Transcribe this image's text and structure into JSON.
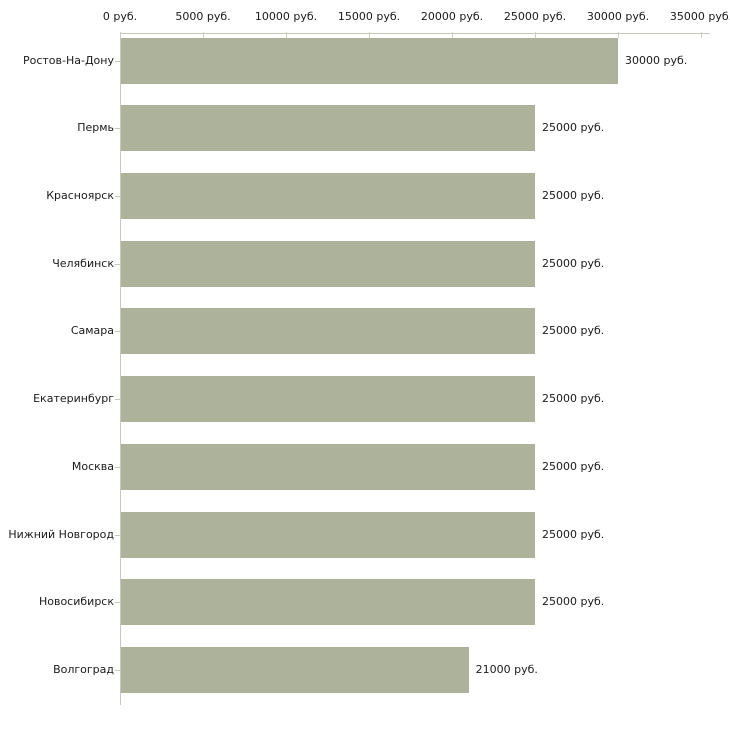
{
  "chart_data": {
    "type": "bar",
    "orientation": "horizontal",
    "title": "",
    "xlabel": "",
    "ylabel": "",
    "categories": [
      "Ростов-На-Дону",
      "Пермь",
      "Красноярск",
      "Челябинск",
      "Самара",
      "Екатеринбург",
      "Москва",
      "Нижний Новгород",
      "Новосибирск",
      "Волгоград"
    ],
    "values": [
      30000,
      25000,
      25000,
      25000,
      25000,
      25000,
      25000,
      25000,
      25000,
      21000
    ],
    "value_labels": [
      "30000 руб.",
      "25000 руб.",
      "25000 руб.",
      "25000 руб.",
      "25000 руб.",
      "25000 руб.",
      "25000 руб.",
      "25000 руб.",
      "25000 руб.",
      "21000 руб."
    ],
    "x_tick_values": [
      0,
      5000,
      10000,
      15000,
      20000,
      25000,
      30000,
      35000
    ],
    "x_tick_labels": [
      "0 руб.",
      "5000 руб.",
      "10000 руб.",
      "15000 руб.",
      "20000 руб.",
      "25000 руб.",
      "30000 руб.",
      "35000 руб."
    ],
    "xlim": [
      0,
      35000
    ],
    "grid": false,
    "legend": "none",
    "colors": {
      "bar": "#adb39a",
      "axis": "#c6c9ba",
      "tick": "#cdd1bb",
      "text": "#1a1a1a",
      "background": "#ffffff"
    }
  }
}
